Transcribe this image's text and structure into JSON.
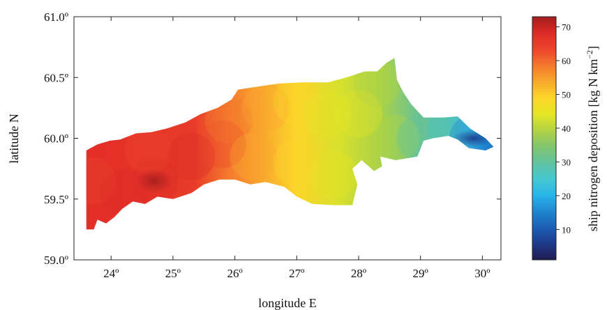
{
  "chart_data": {
    "type": "heatmap",
    "title": "",
    "xlabel": "longitude E",
    "ylabel": "latitude N",
    "xlim": [
      23.4,
      30.3
    ],
    "ylim": [
      59.0,
      61.0
    ],
    "x_ticks": [
      {
        "value": 24,
        "label": "24º"
      },
      {
        "value": 25,
        "label": "25º"
      },
      {
        "value": 26,
        "label": "26º"
      },
      {
        "value": 27,
        "label": "27º"
      },
      {
        "value": 28,
        "label": "28º"
      },
      {
        "value": 29,
        "label": "29º"
      },
      {
        "value": 30,
        "label": "30º"
      }
    ],
    "y_ticks": [
      {
        "value": 59.0,
        "label": "59.0º"
      },
      {
        "value": 59.5,
        "label": "59.5º"
      },
      {
        "value": 60.0,
        "label": "60.0º"
      },
      {
        "value": 60.5,
        "label": "60.5º"
      },
      {
        "value": 61.0,
        "label": "61.0º"
      }
    ],
    "colorbar": {
      "label": "ship nitrogen deposition [kg N km",
      "label_superscript": "−2",
      "label_suffix": "]",
      "range": [
        1,
        73
      ],
      "ticks": [
        {
          "value": 10,
          "label": "10"
        },
        {
          "value": 20,
          "label": "20"
        },
        {
          "value": 30,
          "label": "30"
        },
        {
          "value": 40,
          "label": "40"
        },
        {
          "value": 50,
          "label": "50"
        },
        {
          "value": 60,
          "label": "60"
        },
        {
          "value": 70,
          "label": "70"
        }
      ],
      "colormap": [
        "#1e1b4f",
        "#1e3a8a",
        "#1d5fb5",
        "#1f86d0",
        "#29b6e8",
        "#45c7cf",
        "#61c39f",
        "#83c46e",
        "#b1d343",
        "#e6e625",
        "#fcd52a",
        "#f8a72d",
        "#f4782d",
        "#ec442b",
        "#dd2a27",
        "#a31d1d"
      ]
    },
    "region_outline": [
      [
        23.6,
        59.25
      ],
      [
        23.72,
        59.25
      ],
      [
        23.78,
        59.33
      ],
      [
        23.92,
        59.3
      ],
      [
        24.05,
        59.35
      ],
      [
        24.18,
        59.42
      ],
      [
        24.35,
        59.48
      ],
      [
        24.55,
        59.46
      ],
      [
        24.75,
        59.52
      ],
      [
        25.0,
        59.5
      ],
      [
        25.3,
        59.55
      ],
      [
        25.5,
        59.62
      ],
      [
        25.75,
        59.66
      ],
      [
        26.0,
        59.66
      ],
      [
        26.25,
        59.62
      ],
      [
        26.5,
        59.64
      ],
      [
        26.8,
        59.6
      ],
      [
        27.0,
        59.52
      ],
      [
        27.25,
        59.46
      ],
      [
        27.6,
        59.45
      ],
      [
        27.9,
        59.45
      ],
      [
        27.98,
        59.62
      ],
      [
        27.9,
        59.75
      ],
      [
        28.05,
        59.82
      ],
      [
        28.25,
        59.73
      ],
      [
        28.38,
        59.77
      ],
      [
        28.35,
        59.85
      ],
      [
        28.6,
        59.82
      ],
      [
        28.95,
        59.85
      ],
      [
        29.05,
        59.98
      ],
      [
        29.2,
        60.0
      ],
      [
        29.45,
        60.02
      ],
      [
        29.6,
        59.99
      ],
      [
        29.78,
        59.92
      ],
      [
        30.05,
        59.9
      ],
      [
        30.18,
        59.93
      ],
      [
        30.05,
        60.0
      ],
      [
        29.8,
        60.08
      ],
      [
        29.6,
        60.18
      ],
      [
        29.35,
        60.17
      ],
      [
        29.05,
        60.17
      ],
      [
        28.85,
        60.28
      ],
      [
        28.72,
        60.38
      ],
      [
        28.62,
        60.48
      ],
      [
        28.58,
        60.66
      ],
      [
        28.45,
        60.62
      ],
      [
        28.3,
        60.55
      ],
      [
        28.1,
        60.55
      ],
      [
        27.8,
        60.5
      ],
      [
        27.5,
        60.46
      ],
      [
        27.1,
        60.46
      ],
      [
        26.7,
        60.45
      ],
      [
        26.3,
        60.42
      ],
      [
        26.05,
        60.4
      ],
      [
        25.95,
        60.32
      ],
      [
        25.72,
        60.25
      ],
      [
        25.45,
        60.2
      ],
      [
        25.2,
        60.13
      ],
      [
        24.9,
        60.08
      ],
      [
        24.65,
        60.05
      ],
      [
        24.4,
        60.04
      ],
      [
        24.15,
        59.99
      ],
      [
        23.98,
        59.98
      ],
      [
        23.78,
        59.95
      ],
      [
        23.6,
        59.9
      ]
    ],
    "deposition_field_points": [
      {
        "lon": 23.7,
        "lat": 59.65,
        "value": 64
      },
      {
        "lon": 24.2,
        "lat": 59.55,
        "value": 66
      },
      {
        "lon": 24.7,
        "lat": 59.65,
        "value": 70
      },
      {
        "lon": 24.6,
        "lat": 59.9,
        "value": 65
      },
      {
        "lon": 25.3,
        "lat": 59.85,
        "value": 66
      },
      {
        "lon": 25.8,
        "lat": 59.95,
        "value": 63
      },
      {
        "lon": 25.9,
        "lat": 60.15,
        "value": 60
      },
      {
        "lon": 26.3,
        "lat": 59.85,
        "value": 55
      },
      {
        "lon": 26.5,
        "lat": 60.25,
        "value": 54
      },
      {
        "lon": 27.0,
        "lat": 59.8,
        "value": 50
      },
      {
        "lon": 27.0,
        "lat": 60.3,
        "value": 49
      },
      {
        "lon": 27.6,
        "lat": 59.7,
        "value": 45
      },
      {
        "lon": 27.5,
        "lat": 60.2,
        "value": 46
      },
      {
        "lon": 28.0,
        "lat": 60.2,
        "value": 42
      },
      {
        "lon": 28.3,
        "lat": 60.45,
        "value": 41
      },
      {
        "lon": 28.6,
        "lat": 60.0,
        "value": 37
      },
      {
        "lon": 29.0,
        "lat": 60.0,
        "value": 30
      },
      {
        "lon": 29.5,
        "lat": 60.08,
        "value": 26
      },
      {
        "lon": 29.85,
        "lat": 60.0,
        "value": 17
      }
    ]
  }
}
